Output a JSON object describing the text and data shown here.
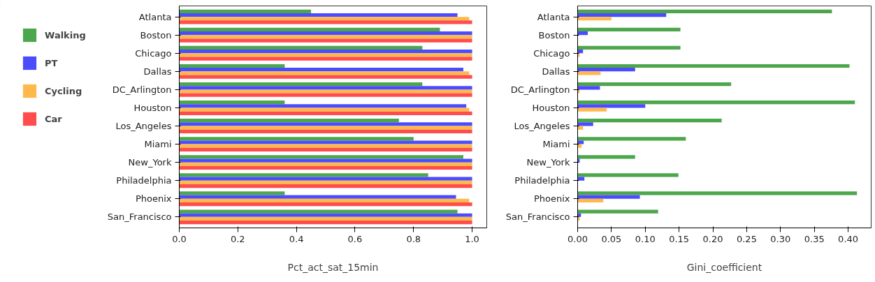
{
  "chart_data": [
    {
      "type": "bar",
      "orientation": "horizontal",
      "xlabel": "Pct_act_sat_15min",
      "legend": "left",
      "grid": false,
      "categories": [
        "Atlanta",
        "Boston",
        "Chicago",
        "Dallas",
        "DC_Arlington",
        "Houston",
        "Los_Angeles",
        "Miami",
        "New_York",
        "Philadelphia",
        "Phoenix",
        "San_Francisco"
      ],
      "xlim": [
        0,
        1.05
      ],
      "xticks": [
        {
          "value": 0,
          "label": "0.0"
        },
        {
          "value": 0.2,
          "label": "0.2"
        },
        {
          "value": 0.4,
          "label": "0.4"
        },
        {
          "value": 0.6,
          "label": "0.6"
        },
        {
          "value": 0.8,
          "label": "0.8"
        },
        {
          "value": 1,
          "label": "1.0"
        }
      ],
      "series": [
        {
          "name": "Walking",
          "color": "#4ca64c",
          "values": [
            0.45,
            0.89,
            0.83,
            0.36,
            0.83,
            0.36,
            0.75,
            0.8,
            0.97,
            0.85,
            0.36,
            0.95
          ]
        },
        {
          "name": "PT",
          "color": "#4c4cff",
          "values": [
            0.95,
            1.0,
            1.0,
            0.97,
            1.0,
            0.98,
            1.0,
            1.0,
            1.0,
            1.0,
            0.945,
            1.0
          ]
        },
        {
          "name": "Cycling",
          "color": "#ffb84c",
          "values": [
            0.99,
            1.0,
            1.0,
            0.99,
            1.0,
            0.99,
            1.0,
            1.0,
            1.0,
            1.0,
            0.99,
            1.0
          ]
        },
        {
          "name": "Car",
          "color": "#ff4c4c",
          "values": [
            1.0,
            1.0,
            1.0,
            1.0,
            1.0,
            1.0,
            1.0,
            1.0,
            1.0,
            1.0,
            1.0,
            1.0
          ]
        }
      ]
    },
    {
      "type": "bar",
      "orientation": "horizontal",
      "xlabel": "Gini_coefficient",
      "grid": false,
      "categories": [
        "Atlanta",
        "Boston",
        "Chicago",
        "Dallas",
        "DC_Arlington",
        "Houston",
        "Los_Angeles",
        "Miami",
        "New_York",
        "Philadelphia",
        "Phoenix",
        "San_Francisco"
      ],
      "xlim": [
        0,
        0.434
      ],
      "xticks": [
        {
          "value": 0,
          "label": "0.00"
        },
        {
          "value": 0.05,
          "label": "0.05"
        },
        {
          "value": 0.1,
          "label": "0.10"
        },
        {
          "value": 0.15,
          "label": "0.15"
        },
        {
          "value": 0.2,
          "label": "0.20"
        },
        {
          "value": 0.25,
          "label": "0.25"
        },
        {
          "value": 0.3,
          "label": "0.30"
        },
        {
          "value": 0.35,
          "label": "0.35"
        },
        {
          "value": 0.4,
          "label": "0.40"
        }
      ],
      "series": [
        {
          "color": "#4ca64c",
          "values": [
            0.376,
            0.152,
            0.152,
            0.402,
            0.227,
            0.41,
            0.213,
            0.16,
            0.085,
            0.149,
            0.413,
            0.119
          ]
        },
        {
          "color": "#4c4cff",
          "values": [
            0.131,
            0.015,
            0.008,
            0.085,
            0.033,
            0.1,
            0.023,
            0.009,
            0.003,
            0.01,
            0.092,
            0.005
          ]
        },
        {
          "color": "#ffb84c",
          "values": [
            0.05,
            0,
            0.003,
            0.034,
            0.003,
            0.043,
            0.008,
            0.006,
            0,
            0,
            0.038,
            0.003
          ]
        },
        {
          "color": "#ff4c4c",
          "values": [
            0,
            0,
            0,
            0,
            0,
            0,
            0,
            0,
            0,
            0,
            0,
            0
          ]
        }
      ]
    }
  ]
}
